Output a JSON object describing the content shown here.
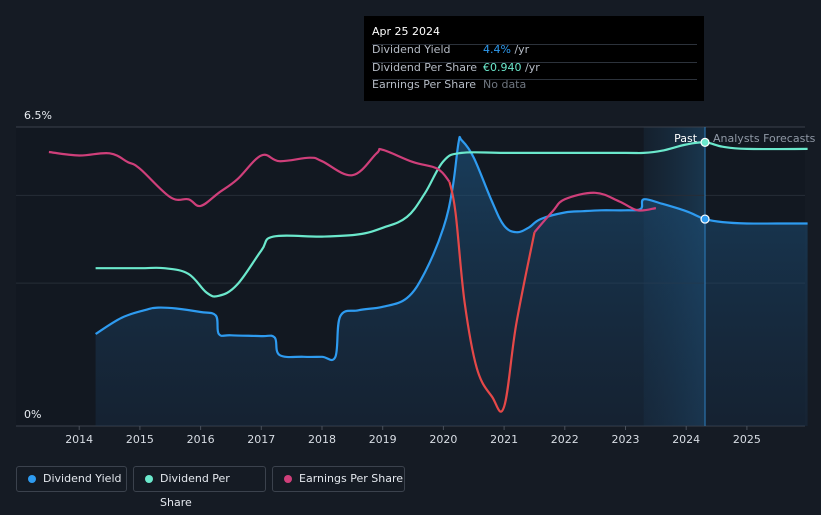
{
  "colors": {
    "dividend_yield": "#2e9bf0",
    "dividend_per_share": "#6be8cc",
    "earnings_per_share": "#cf3f7a",
    "earnings_drop": "#e54848",
    "background": "#151b24",
    "tooltip_bg": "#000000"
  },
  "tooltip": {
    "date": "Apr 25 2024",
    "rows": [
      {
        "label": "Dividend Yield",
        "value": "4.4%",
        "unit": " /yr"
      },
      {
        "label": "Dividend Per Share",
        "value": "€0.940",
        "unit": " /yr"
      },
      {
        "label": "Earnings Per Share",
        "value": "No data",
        "unit": ""
      }
    ]
  },
  "regions": {
    "past": "Past",
    "forecast": "Analysts Forecasts"
  },
  "legend": [
    {
      "label": "Dividend Yield",
      "series": "dividend_yield"
    },
    {
      "label": "Dividend Per Share",
      "series": "dividend_per_share"
    },
    {
      "label": "Earnings Per Share",
      "series": "earnings_per_share"
    }
  ],
  "chart_data": {
    "type": "line",
    "title": "",
    "xlabel": "",
    "ylabel": "",
    "y_tick_labels": [
      "6.5%",
      "0%"
    ],
    "ylim": [
      0,
      6.5
    ],
    "xlim": [
      2013.0,
      2026.0
    ],
    "x_ticks": [
      2014,
      2015,
      2016,
      2017,
      2018,
      2019,
      2020,
      2021,
      2022,
      2023,
      2024,
      2025
    ],
    "grid": true,
    "legend_position": "bottom-left",
    "past_forecast_boundary": 2024.31,
    "forecast_start_shade": 2023.3,
    "series": [
      {
        "name": "Dividend Yield",
        "key": "dividend_yield",
        "area": true,
        "x": [
          2014.27,
          2014.7,
          2015.1,
          2015.3,
          2015.6,
          2016.0,
          2016.25,
          2016.3,
          2016.5,
          2017.0,
          2017.22,
          2017.3,
          2017.7,
          2018.0,
          2018.22,
          2018.3,
          2018.6,
          2019.0,
          2019.4,
          2019.7,
          2020.0,
          2020.15,
          2020.25,
          2020.3,
          2020.5,
          2020.8,
          2021.0,
          2021.2,
          2021.4,
          2021.6,
          2022.0,
          2022.3,
          2022.6,
          2023.0,
          2023.25,
          2023.3,
          2023.6,
          2024.0,
          2024.31,
          2024.6,
          2025.0,
          2025.5,
          2026.0
        ],
        "y": [
          1.78,
          2.15,
          2.33,
          2.38,
          2.36,
          2.28,
          2.2,
          1.78,
          1.75,
          1.73,
          1.7,
          1.3,
          1.26,
          1.26,
          1.26,
          2.18,
          2.32,
          2.4,
          2.6,
          3.2,
          4.2,
          5.1,
          6.15,
          6.2,
          5.8,
          4.8,
          4.25,
          4.1,
          4.2,
          4.4,
          4.55,
          4.58,
          4.6,
          4.6,
          4.63,
          4.85,
          4.75,
          4.58,
          4.4,
          4.33,
          4.3,
          4.3,
          4.3
        ]
      },
      {
        "name": "Dividend Per Share",
        "key": "dividend_per_share",
        "x": [
          2014.27,
          2015.0,
          2015.4,
          2015.8,
          2016.1,
          2016.3,
          2016.6,
          2017.0,
          2017.2,
          2018.0,
          2018.6,
          2019.0,
          2019.4,
          2019.7,
          2020.0,
          2020.3,
          2021.0,
          2022.0,
          2023.0,
          2023.3,
          2023.6,
          2024.0,
          2024.31,
          2024.6,
          2025.0,
          2026.0
        ],
        "y": [
          3.28,
          3.28,
          3.28,
          3.15,
          2.72,
          2.65,
          2.9,
          3.68,
          4.0,
          4.0,
          4.05,
          4.2,
          4.45,
          5.0,
          5.72,
          5.91,
          5.91,
          5.91,
          5.91,
          5.91,
          5.96,
          6.1,
          6.15,
          6.05,
          6.0,
          6.0
        ]
      },
      {
        "name": "Earnings Per Share",
        "key": "earnings_per_share",
        "x": [
          2013.5,
          2014.0,
          2014.5,
          2014.8,
          2015.0,
          2015.5,
          2015.8,
          2016.0,
          2016.3,
          2016.6,
          2017.0,
          2017.3,
          2017.8,
          2018.0,
          2018.5,
          2018.9,
          2019.0,
          2019.5,
          2019.9,
          2020.1,
          2020.2,
          2020.35,
          2020.55,
          2020.8,
          2021.0,
          2021.2,
          2021.5,
          2021.8,
          2022.0,
          2022.5,
          2022.9,
          2023.2,
          2023.5
        ],
        "y": [
          5.93,
          5.85,
          5.9,
          5.7,
          5.55,
          4.9,
          4.85,
          4.7,
          5.0,
          5.3,
          5.85,
          5.72,
          5.8,
          5.72,
          5.4,
          5.9,
          5.98,
          5.7,
          5.55,
          5.25,
          4.55,
          2.5,
          1.0,
          0.35,
          0.12,
          2.0,
          4.1,
          4.58,
          4.85,
          5.0,
          4.8,
          4.6,
          4.65
        ]
      }
    ]
  }
}
